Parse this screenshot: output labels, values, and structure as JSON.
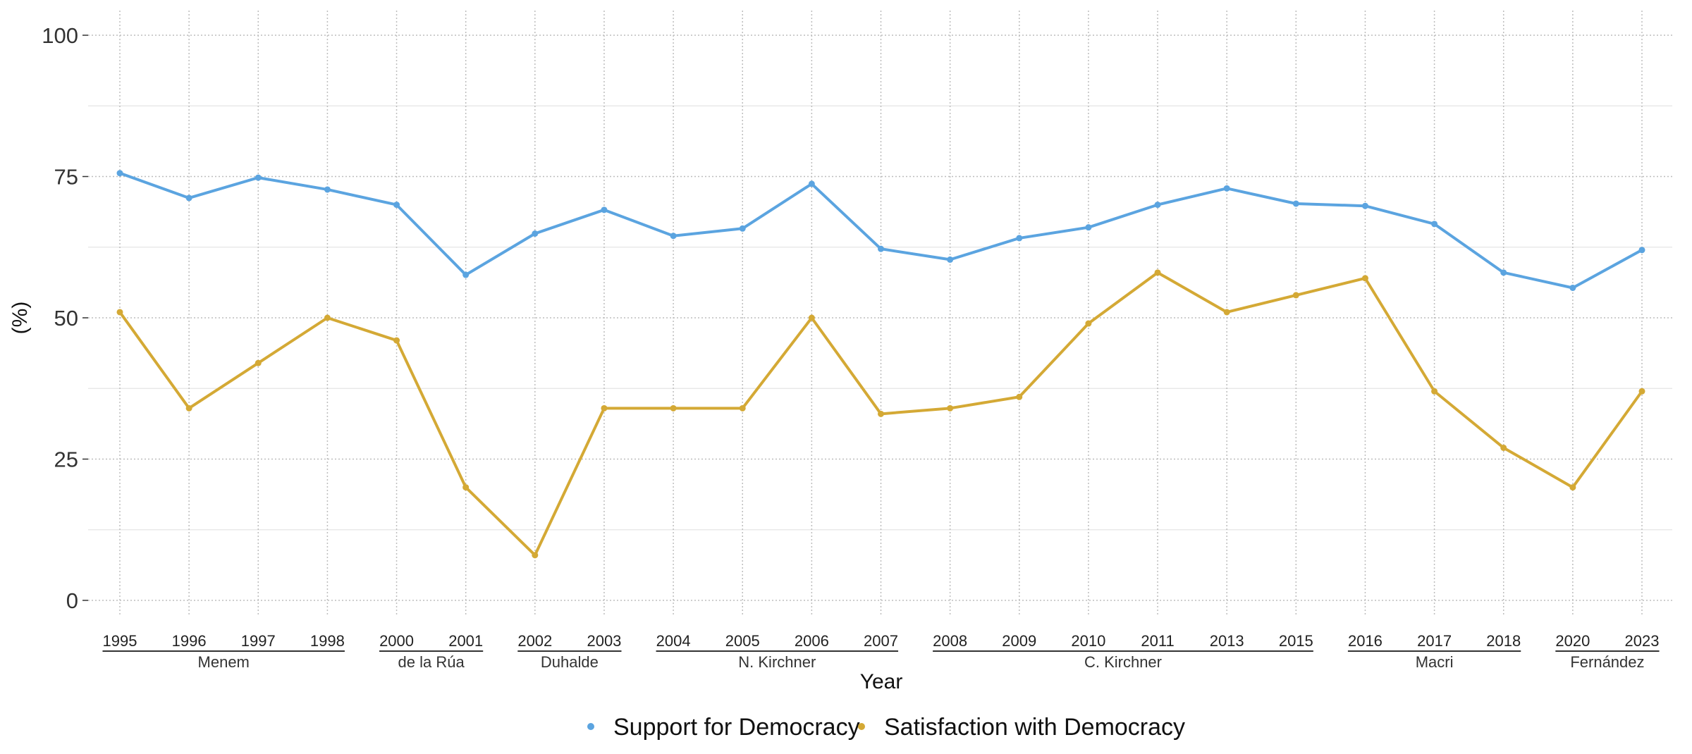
{
  "chart_data": {
    "type": "line",
    "title": "",
    "xlabel": "Year",
    "ylabel": "(%)",
    "ylim": [
      0,
      100
    ],
    "yticks": [
      0,
      25,
      50,
      75,
      100
    ],
    "grid": true,
    "legend_position": "bottom",
    "categories": [
      "1995",
      "1996",
      "1997",
      "1998",
      "2000",
      "2001",
      "2002",
      "2003",
      "2004",
      "2005",
      "2006",
      "2007",
      "2008",
      "2009",
      "2010",
      "2011",
      "2013",
      "2015",
      "2016",
      "2017",
      "2018",
      "2020",
      "2023"
    ],
    "groups": [
      {
        "label": "Menem",
        "from": "1995",
        "to": "1998"
      },
      {
        "label": "de la Rúa",
        "from": "2000",
        "to": "2001"
      },
      {
        "label": "Duhalde",
        "from": "2002",
        "to": "2003"
      },
      {
        "label": "N. Kirchner",
        "from": "2004",
        "to": "2007"
      },
      {
        "label": "C. Kirchner",
        "from": "2008",
        "to": "2015"
      },
      {
        "label": "Macri",
        "from": "2016",
        "to": "2018"
      },
      {
        "label": "Fernández",
        "from": "2020",
        "to": "2023"
      }
    ],
    "series": [
      {
        "name": "Support for Democracy",
        "color": "#5BA4E0",
        "values": [
          75.6,
          71.2,
          74.8,
          72.7,
          70.0,
          57.6,
          64.9,
          69.1,
          64.5,
          65.8,
          73.7,
          62.2,
          60.3,
          64.1,
          66.0,
          70.0,
          72.9,
          70.2,
          69.8,
          66.6,
          58.0,
          55.3,
          62.0
        ]
      },
      {
        "name": "Satisfaction with Democracy",
        "color": "#D4A935",
        "values": [
          51,
          34,
          42,
          50,
          46,
          20,
          8,
          34,
          34,
          34,
          50,
          33,
          34,
          36,
          49,
          58,
          51,
          54,
          57,
          37,
          27,
          20,
          37
        ]
      }
    ]
  }
}
